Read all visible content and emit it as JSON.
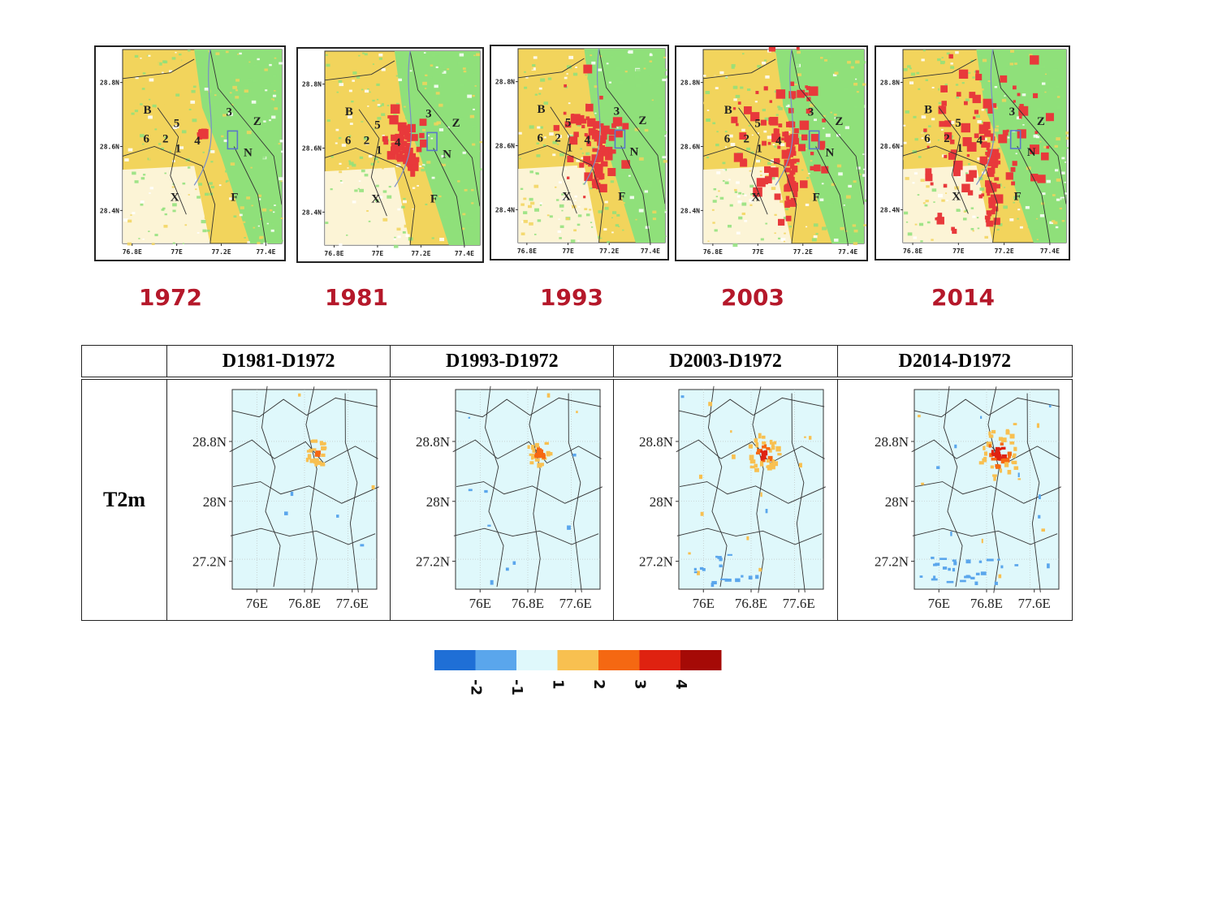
{
  "landuse_maps": [
    {
      "year": "1972",
      "letters": [
        "B",
        "3",
        "Z",
        "5",
        "6",
        "2",
        "4",
        "1",
        "N",
        "X",
        "F"
      ],
      "ytick": [
        "28.8N",
        "28.6N",
        "28.4N"
      ],
      "xtick": [
        "76.8E",
        "77E",
        "77.2E",
        "77.4E"
      ]
    },
    {
      "year": "1981",
      "letters": [
        "B",
        "3",
        "Z",
        "5",
        "6",
        "2",
        "4",
        "1",
        "N",
        "X",
        "F"
      ],
      "ytick": [
        "28.8N",
        "28.6N",
        "28.4N"
      ],
      "xtick": [
        "76.8E",
        "77E",
        "77.2E",
        "77.4E"
      ]
    },
    {
      "year": "1993",
      "letters": [
        "B",
        "3",
        "Z",
        "5",
        "6",
        "2",
        "4",
        "1",
        "N",
        "X",
        "F"
      ],
      "ytick": [
        "28.8N",
        "28.6N",
        "28.4N"
      ],
      "xtick": [
        "76.8E",
        "77E",
        "77.2E",
        "77.4E"
      ]
    },
    {
      "year": "2003",
      "letters": [
        "B",
        "3",
        "Z",
        "5",
        "6",
        "2",
        "4",
        "1",
        "N",
        "X",
        "F"
      ],
      "ytick": [
        "28.8N",
        "28.6N",
        "28.4N"
      ],
      "xtick": [
        "76.8E",
        "77E",
        "77.2E",
        "77.4E"
      ]
    },
    {
      "year": "2014",
      "letters": [
        "B",
        "3",
        "Z",
        "5",
        "6",
        "2",
        "4",
        "1",
        "N",
        "X",
        "F"
      ],
      "ytick": [
        "28.8N",
        "28.6N",
        "28.4N"
      ],
      "xtick": [
        "76.8E",
        "77E",
        "77.2E",
        "77.4E"
      ]
    }
  ],
  "landuse_colors": {
    "urban": "#e8393b",
    "cropland": "#f2d45c",
    "vegetation": "#8fe07a",
    "barren": "#ffffff",
    "water": "#5a78c8"
  },
  "table": {
    "row_label": "T2m",
    "columns": [
      "D1981-D1972",
      "D1993-D1972",
      "D2003-D1972",
      "D2014-D1972"
    ],
    "ytick": [
      "28.8N",
      "28N",
      "27.2N"
    ],
    "xtick": [
      "76E",
      "76.8E",
      "77.6E"
    ]
  },
  "colorbar": {
    "colors": [
      "#1f6fd6",
      "#5aa6ec",
      "#dff8fb",
      "#f8c050",
      "#f56812",
      "#df2210",
      "#a50a06"
    ],
    "labels": [
      "-2",
      "-1",
      "1",
      "2",
      "3",
      "4"
    ]
  }
}
